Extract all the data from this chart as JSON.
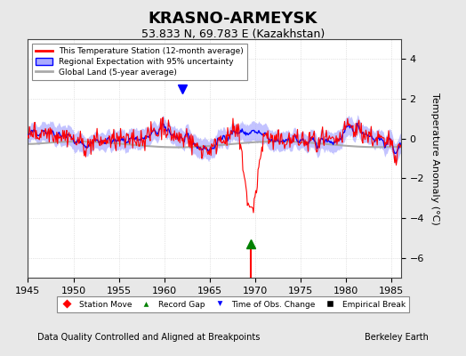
{
  "title": "KRASNO-ARMEYSK",
  "subtitle": "53.833 N, 69.783 E (Kazakhstan)",
  "xlabel_note": "Data Quality Controlled and Aligned at Breakpoints",
  "credit": "Berkeley Earth",
  "ylabel": "Temperature Anomaly (°C)",
  "xmin": 1945,
  "xmax": 1986,
  "ymin": -7,
  "ymax": 5,
  "yticks": [
    -6,
    -4,
    -2,
    0,
    2,
    4
  ],
  "xticks": [
    1945,
    1950,
    1955,
    1960,
    1965,
    1970,
    1975,
    1980,
    1985
  ],
  "bg_color": "#e8e8e8",
  "plot_bg_color": "#ffffff",
  "station_color": "#ff0000",
  "regional_color": "#0000ff",
  "regional_fill_color": "#aaaaff",
  "global_color": "#aaaaaa",
  "legend_items": [
    "This Temperature Station (12-month average)",
    "Regional Expectation with 95% uncertainty",
    "Global Land (5-year average)"
  ],
  "marker_legend": [
    {
      "label": "Station Move",
      "color": "#ff0000",
      "marker": "D"
    },
    {
      "label": "Record Gap",
      "color": "#008000",
      "marker": "^"
    },
    {
      "label": "Time of Obs. Change",
      "color": "#0000ff",
      "marker": "v"
    },
    {
      "label": "Empirical Break",
      "color": "#000000",
      "marker": "s"
    }
  ],
  "record_gap_x": 1969.5,
  "record_gap_y": -5.8,
  "time_obs_x": 1962.0,
  "time_obs_y": 2.5,
  "seed": 42
}
